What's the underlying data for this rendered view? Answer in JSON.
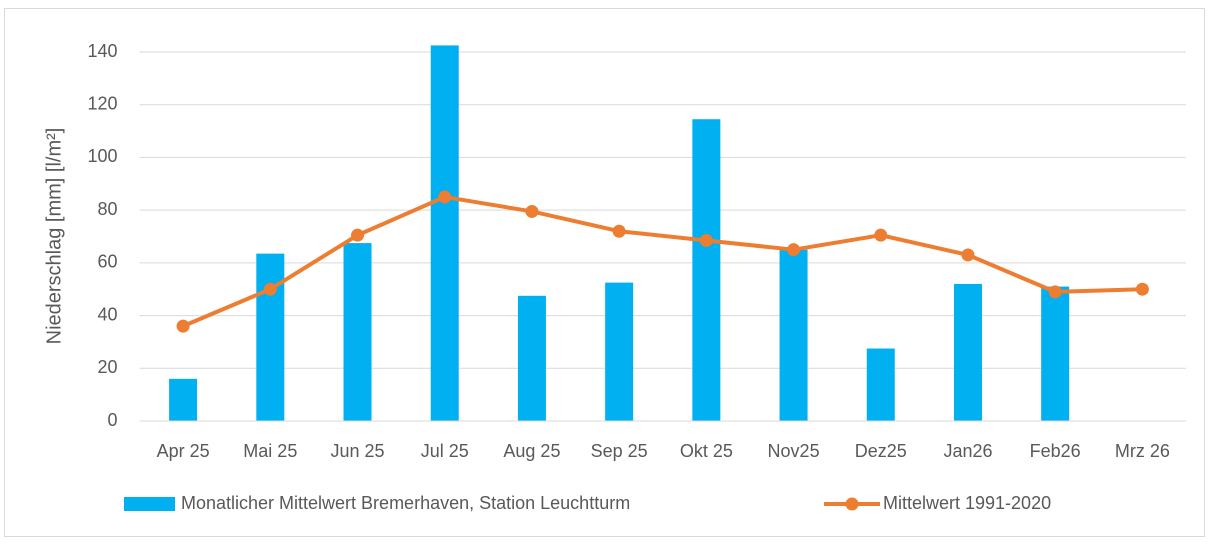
{
  "chart_data": {
    "type": "combo",
    "y_label": "Niederschlag [mm] [l/m²]",
    "categories": [
      "Apr 25",
      "Mai 25",
      "Jun 25",
      "Jul 25",
      "Aug 25",
      "Sep 25",
      "Okt 25",
      "Nov25",
      "Dez25",
      "Jan26",
      "Feb26",
      "Mrz 26"
    ],
    "series": [
      {
        "name": "Monatlicher Mittelwert Bremerhaven, Station Leuchtturm",
        "type": "bar",
        "color": "#00b0f0",
        "values": [
          16,
          63.5,
          67.5,
          142.5,
          47.5,
          52.5,
          114.5,
          65,
          27.5,
          52,
          51,
          null
        ]
      },
      {
        "name": "Mittelwert 1991-2020",
        "type": "line",
        "color": "#ed7d31",
        "values": [
          36,
          50,
          70.5,
          85,
          79.5,
          72,
          68.5,
          65,
          70.5,
          63,
          49,
          50
        ]
      }
    ],
    "ylim": [
      0,
      140
    ],
    "yticks": [
      0,
      20,
      40,
      60,
      80,
      100,
      120,
      140
    ],
    "grid": true
  }
}
